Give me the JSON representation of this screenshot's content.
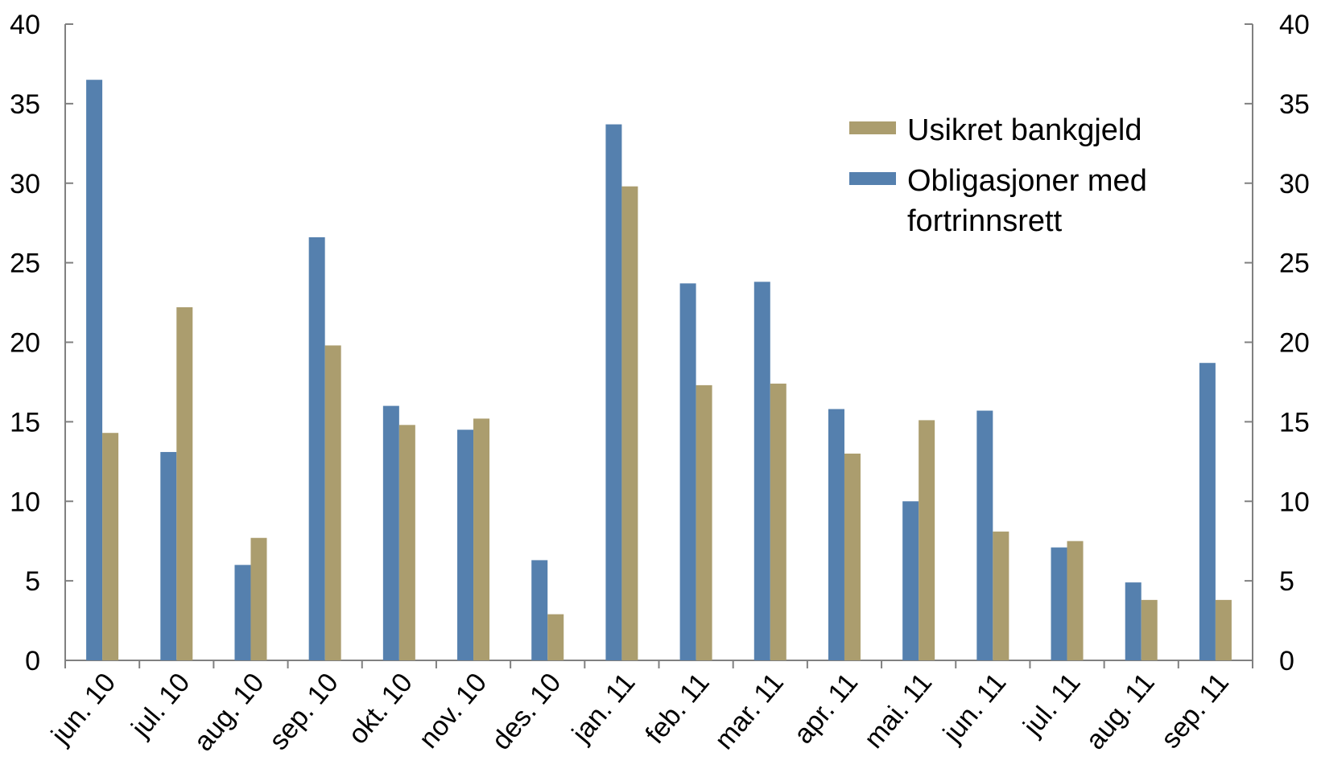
{
  "chart_data": {
    "type": "bar",
    "categories": [
      "jun. 10",
      "jul. 10",
      "aug. 10",
      "sep. 10",
      "okt. 10",
      "nov. 10",
      "des. 10",
      "jan. 11",
      "feb. 11",
      "mar. 11",
      "apr. 11",
      "mai. 11",
      "jun. 11",
      "jul. 11",
      "aug. 11",
      "sep. 11"
    ],
    "series": [
      {
        "name": "Obligasjoner med fortrinnsrett",
        "color": "#5580AE",
        "values": [
          36.5,
          13.1,
          6.0,
          26.6,
          16.0,
          14.5,
          6.3,
          33.7,
          23.7,
          23.8,
          15.8,
          10.0,
          15.7,
          7.1,
          4.9,
          18.7
        ]
      },
      {
        "name": "Usikret bankgjeld",
        "color": "#AB9D6E",
        "values": [
          14.3,
          22.2,
          7.7,
          19.8,
          14.8,
          15.2,
          2.9,
          29.8,
          17.3,
          17.4,
          13.0,
          15.1,
          8.1,
          7.5,
          3.8,
          3.8
        ]
      }
    ],
    "ylim": [
      0,
      40
    ],
    "y_ticks": [
      0,
      5,
      10,
      15,
      20,
      25,
      30,
      35,
      40
    ],
    "y_axis_right": true,
    "grid": false,
    "legend": {
      "placement": "top-right",
      "entries": [
        {
          "series": 1,
          "lines": [
            "Usikret bankgjeld"
          ]
        },
        {
          "series": 0,
          "lines": [
            "Obligasjoner med",
            "fortrinnsrett"
          ]
        }
      ]
    }
  }
}
